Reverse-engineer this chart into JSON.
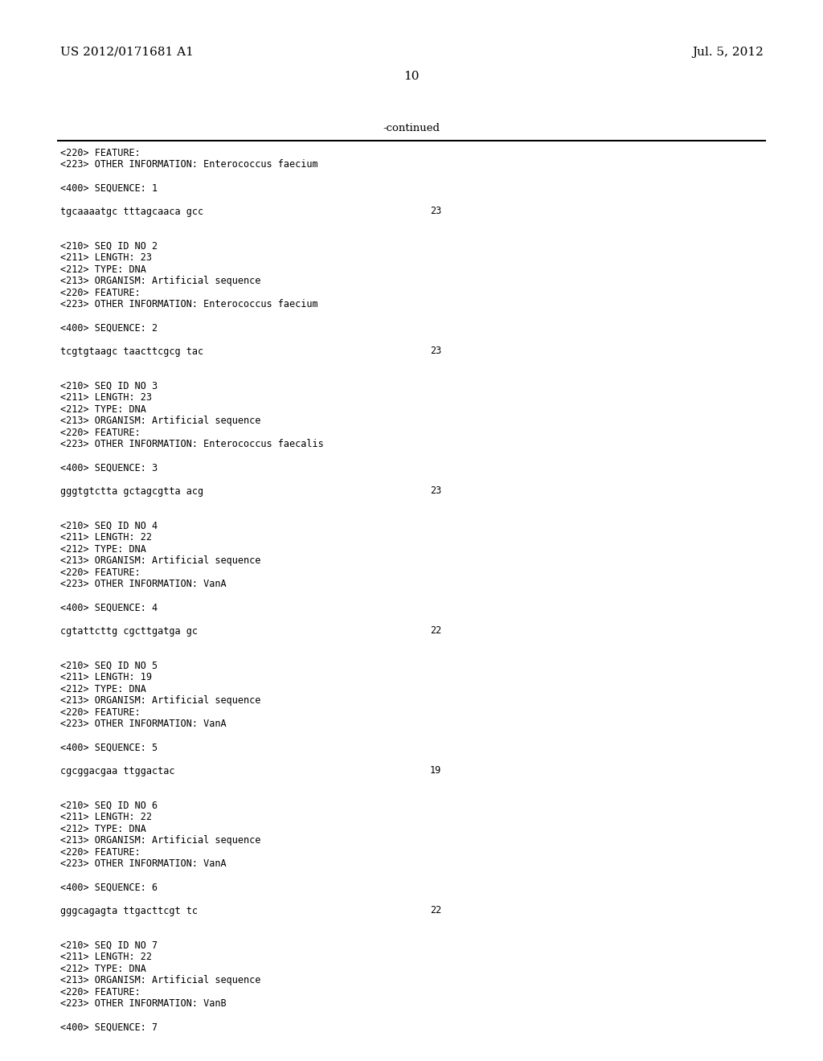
{
  "background_color": "#ffffff",
  "header_left": "US 2012/0171681 A1",
  "header_right": "Jul. 5, 2012",
  "page_number": "10",
  "continued_label": "-continued",
  "content_lines": [
    {
      "text": "<220> FEATURE:",
      "style": "mono"
    },
    {
      "text": "<223> OTHER INFORMATION: Enterococcus faecium",
      "style": "mono"
    },
    {
      "text": "",
      "style": "blank"
    },
    {
      "text": "<400> SEQUENCE: 1",
      "style": "mono"
    },
    {
      "text": "",
      "style": "blank"
    },
    {
      "text": "tgcaaaatgc tttagcaaca gcc",
      "style": "seq",
      "num": "23"
    },
    {
      "text": "",
      "style": "blank"
    },
    {
      "text": "",
      "style": "blank"
    },
    {
      "text": "<210> SEQ ID NO 2",
      "style": "mono"
    },
    {
      "text": "<211> LENGTH: 23",
      "style": "mono"
    },
    {
      "text": "<212> TYPE: DNA",
      "style": "mono"
    },
    {
      "text": "<213> ORGANISM: Artificial sequence",
      "style": "mono"
    },
    {
      "text": "<220> FEATURE:",
      "style": "mono"
    },
    {
      "text": "<223> OTHER INFORMATION: Enterococcus faecium",
      "style": "mono"
    },
    {
      "text": "",
      "style": "blank"
    },
    {
      "text": "<400> SEQUENCE: 2",
      "style": "mono"
    },
    {
      "text": "",
      "style": "blank"
    },
    {
      "text": "tcgtgtaagc taacttcgcg tac",
      "style": "seq",
      "num": "23"
    },
    {
      "text": "",
      "style": "blank"
    },
    {
      "text": "",
      "style": "blank"
    },
    {
      "text": "<210> SEQ ID NO 3",
      "style": "mono"
    },
    {
      "text": "<211> LENGTH: 23",
      "style": "mono"
    },
    {
      "text": "<212> TYPE: DNA",
      "style": "mono"
    },
    {
      "text": "<213> ORGANISM: Artificial sequence",
      "style": "mono"
    },
    {
      "text": "<220> FEATURE:",
      "style": "mono"
    },
    {
      "text": "<223> OTHER INFORMATION: Enterococcus faecalis",
      "style": "mono"
    },
    {
      "text": "",
      "style": "blank"
    },
    {
      "text": "<400> SEQUENCE: 3",
      "style": "mono"
    },
    {
      "text": "",
      "style": "blank"
    },
    {
      "text": "gggtgtctta gctagcgtta acg",
      "style": "seq",
      "num": "23"
    },
    {
      "text": "",
      "style": "blank"
    },
    {
      "text": "",
      "style": "blank"
    },
    {
      "text": "<210> SEQ ID NO 4",
      "style": "mono"
    },
    {
      "text": "<211> LENGTH: 22",
      "style": "mono"
    },
    {
      "text": "<212> TYPE: DNA",
      "style": "mono"
    },
    {
      "text": "<213> ORGANISM: Artificial sequence",
      "style": "mono"
    },
    {
      "text": "<220> FEATURE:",
      "style": "mono"
    },
    {
      "text": "<223> OTHER INFORMATION: VanA",
      "style": "mono"
    },
    {
      "text": "",
      "style": "blank"
    },
    {
      "text": "<400> SEQUENCE: 4",
      "style": "mono"
    },
    {
      "text": "",
      "style": "blank"
    },
    {
      "text": "cgtattcttg cgcttgatga gc",
      "style": "seq",
      "num": "22"
    },
    {
      "text": "",
      "style": "blank"
    },
    {
      "text": "",
      "style": "blank"
    },
    {
      "text": "<210> SEQ ID NO 5",
      "style": "mono"
    },
    {
      "text": "<211> LENGTH: 19",
      "style": "mono"
    },
    {
      "text": "<212> TYPE: DNA",
      "style": "mono"
    },
    {
      "text": "<213> ORGANISM: Artificial sequence",
      "style": "mono"
    },
    {
      "text": "<220> FEATURE:",
      "style": "mono"
    },
    {
      "text": "<223> OTHER INFORMATION: VanA",
      "style": "mono"
    },
    {
      "text": "",
      "style": "blank"
    },
    {
      "text": "<400> SEQUENCE: 5",
      "style": "mono"
    },
    {
      "text": "",
      "style": "blank"
    },
    {
      "text": "cgcggacgaa ttggactac",
      "style": "seq",
      "num": "19"
    },
    {
      "text": "",
      "style": "blank"
    },
    {
      "text": "",
      "style": "blank"
    },
    {
      "text": "<210> SEQ ID NO 6",
      "style": "mono"
    },
    {
      "text": "<211> LENGTH: 22",
      "style": "mono"
    },
    {
      "text": "<212> TYPE: DNA",
      "style": "mono"
    },
    {
      "text": "<213> ORGANISM: Artificial sequence",
      "style": "mono"
    },
    {
      "text": "<220> FEATURE:",
      "style": "mono"
    },
    {
      "text": "<223> OTHER INFORMATION: VanA",
      "style": "mono"
    },
    {
      "text": "",
      "style": "blank"
    },
    {
      "text": "<400> SEQUENCE: 6",
      "style": "mono"
    },
    {
      "text": "",
      "style": "blank"
    },
    {
      "text": "gggcagagta ttgacttcgt tc",
      "style": "seq",
      "num": "22"
    },
    {
      "text": "",
      "style": "blank"
    },
    {
      "text": "",
      "style": "blank"
    },
    {
      "text": "<210> SEQ ID NO 7",
      "style": "mono"
    },
    {
      "text": "<211> LENGTH: 22",
      "style": "mono"
    },
    {
      "text": "<212> TYPE: DNA",
      "style": "mono"
    },
    {
      "text": "<213> ORGANISM: Artificial sequence",
      "style": "mono"
    },
    {
      "text": "<220> FEATURE:",
      "style": "mono"
    },
    {
      "text": "<223> OTHER INFORMATION: VanB",
      "style": "mono"
    },
    {
      "text": "",
      "style": "blank"
    },
    {
      "text": "<400> SEQUENCE: 7",
      "style": "mono"
    }
  ]
}
